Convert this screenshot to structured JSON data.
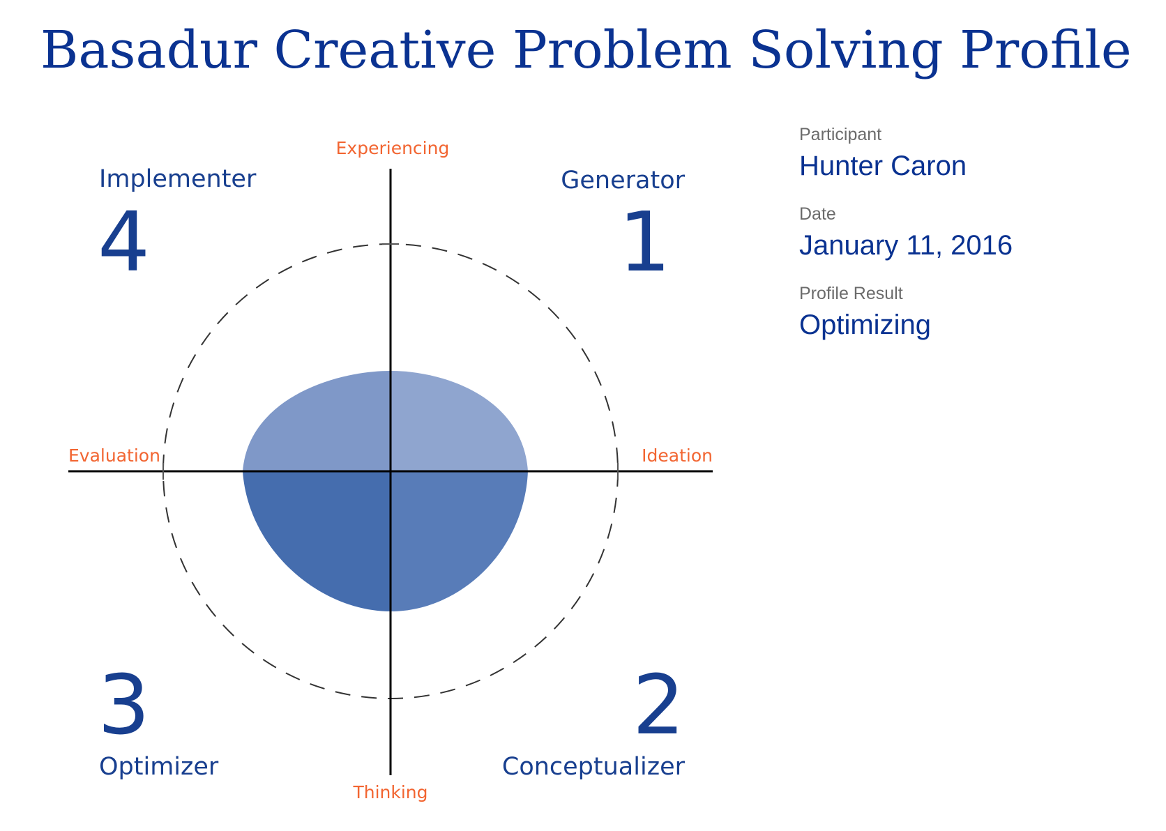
{
  "title": "Basadur Creative Problem Solving Profile",
  "diagram": {
    "axes": {
      "top": "Experiencing",
      "bottom": "Thinking",
      "left": "Evaluation",
      "right": "Ideation"
    },
    "quadrants": [
      {
        "number": "1",
        "name": "Generator"
      },
      {
        "number": "2",
        "name": "Conceptualizer"
      },
      {
        "number": "3",
        "name": "Optimizer"
      },
      {
        "number": "4",
        "name": "Implementer"
      }
    ],
    "colors": {
      "axis_label": "#f26531",
      "quadrant_text": "#183f8f",
      "q1_fill": "#8fa5cf",
      "q2_fill": "#587cb8",
      "q3_fill": "#456dae",
      "q4_fill": "#7f98c8"
    }
  },
  "info": {
    "participant_label": "Participant",
    "participant_value": "Hunter Caron",
    "date_label": "Date",
    "date_value": "January 11, 2016",
    "result_label": "Profile Result",
    "result_value": "Optimizing"
  }
}
